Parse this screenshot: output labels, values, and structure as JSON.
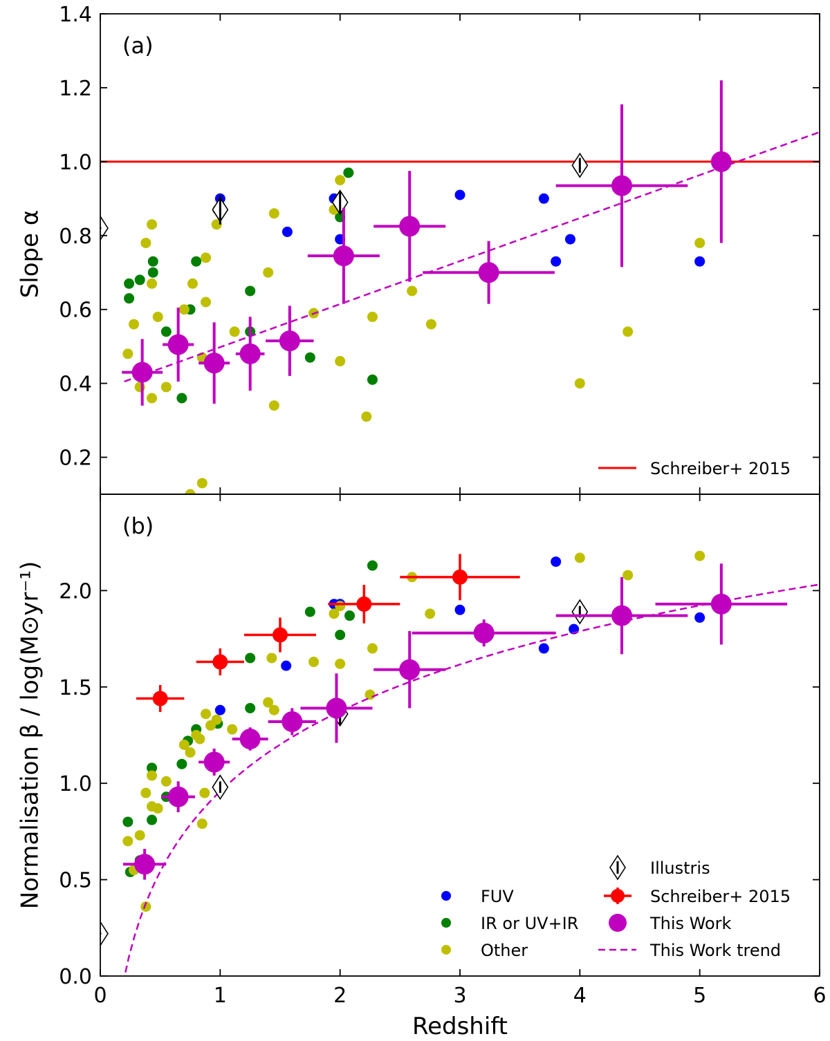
{
  "chart_data": [
    {
      "type": "scatter",
      "panel_label": "(a)",
      "ylabel": "Slope α",
      "xlabel": "",
      "xlim": [
        0,
        6
      ],
      "ylim": [
        0.1,
        1.4
      ],
      "yticks": [
        0.2,
        0.4,
        0.6,
        0.8,
        1.0,
        1.2,
        1.4
      ],
      "ytick_labels": [
        "0.2",
        "0.4",
        "0.6",
        "0.8",
        "1.0",
        "1.2",
        "1.4"
      ],
      "legend": {
        "position": "lower-right",
        "entries": [
          "Schreiber+ 2015"
        ]
      },
      "series": [
        {
          "name": "FUV",
          "color": "#0000ff",
          "points": [
            [
              1.0,
              0.9
            ],
            [
              1.56,
              0.81
            ],
            [
              1.95,
              0.9
            ],
            [
              2.0,
              0.79
            ],
            [
              3.0,
              0.91
            ],
            [
              3.7,
              0.9
            ],
            [
              3.8,
              0.73
            ],
            [
              3.92,
              0.79
            ],
            [
              5.0,
              0.73
            ]
          ]
        },
        {
          "name": "IR or UV+IR",
          "color": "#007f00",
          "points": [
            [
              0.24,
              0.67
            ],
            [
              0.24,
              0.63
            ],
            [
              0.33,
              0.68
            ],
            [
              0.44,
              0.7
            ],
            [
              0.44,
              0.73
            ],
            [
              0.55,
              0.54
            ],
            [
              0.68,
              0.36
            ],
            [
              0.75,
              0.6
            ],
            [
              0.8,
              0.73
            ],
            [
              0.98,
              0.87
            ],
            [
              1.25,
              0.65
            ],
            [
              1.25,
              0.54
            ],
            [
              1.75,
              0.47
            ],
            [
              2.0,
              0.85
            ],
            [
              2.07,
              0.97
            ],
            [
              2.27,
              0.41
            ]
          ]
        },
        {
          "name": "Other",
          "color": "#bfbf00",
          "points": [
            [
              0.23,
              0.48
            ],
            [
              0.28,
              0.56
            ],
            [
              0.33,
              0.39
            ],
            [
              0.38,
              0.78
            ],
            [
              0.43,
              0.83
            ],
            [
              0.43,
              0.67
            ],
            [
              0.43,
              0.36
            ],
            [
              0.48,
              0.58
            ],
            [
              0.55,
              0.39
            ],
            [
              0.7,
              0.6
            ],
            [
              0.77,
              0.67
            ],
            [
              0.88,
              0.74
            ],
            [
              0.88,
              0.62
            ],
            [
              0.85,
              0.47
            ],
            [
              0.85,
              0.13
            ],
            [
              0.75,
              0.1
            ],
            [
              0.97,
              0.83
            ],
            [
              1.12,
              0.54
            ],
            [
              1.4,
              0.7
            ],
            [
              1.45,
              0.86
            ],
            [
              1.45,
              0.34
            ],
            [
              1.78,
              0.59
            ],
            [
              1.95,
              0.87
            ],
            [
              2.0,
              0.95
            ],
            [
              2.0,
              0.46
            ],
            [
              2.22,
              0.31
            ],
            [
              2.27,
              0.58
            ],
            [
              2.6,
              0.65
            ],
            [
              2.76,
              0.56
            ],
            [
              4.0,
              0.4
            ],
            [
              4.4,
              0.54
            ],
            [
              5.0,
              0.78
            ]
          ]
        },
        {
          "name": "Illustris",
          "points": [
            [
              0.0,
              0.82,
              0.0
            ],
            [
              1.0,
              0.87,
              0.04
            ],
            [
              2.0,
              0.89,
              0.03
            ],
            [
              4.0,
              0.99,
              0.02
            ]
          ]
        },
        {
          "name": "This Work",
          "color": "#bf00bf",
          "points": [
            [
              0.35,
              0.43,
              0.17,
              0.09
            ],
            [
              0.65,
              0.505,
              0.13,
              0.1
            ],
            [
              0.95,
              0.455,
              0.13,
              0.11
            ],
            [
              1.25,
              0.48,
              0.12,
              0.1
            ],
            [
              1.58,
              0.515,
              0.2,
              0.095
            ],
            [
              2.03,
              0.745,
              0.3,
              0.13
            ],
            [
              2.58,
              0.825,
              0.3,
              0.15
            ],
            [
              3.24,
              0.7,
              0.55,
              0.085
            ],
            [
              4.35,
              0.935,
              0.55,
              0.22
            ],
            [
              5.18,
              1.0,
              0.0,
              0.22
            ]
          ]
        }
      ],
      "trend": {
        "name": "This Work trend",
        "x": [
          0.2,
          6.0
        ],
        "y": [
          0.405,
          1.08
        ]
      },
      "reference_line": {
        "name": "Schreiber+ 2015",
        "color": "#ff0000",
        "y": 1.0
      }
    },
    {
      "type": "scatter",
      "panel_label": "(b)",
      "ylabel": "Normalisation β / log(M⊙yr⁻¹)",
      "xlabel": "Redshift",
      "xlim": [
        0,
        6
      ],
      "ylim": [
        0.0,
        2.5
      ],
      "xticks": [
        0,
        1,
        2,
        3,
        4,
        5,
        6
      ],
      "xtick_labels": [
        "0",
        "1",
        "2",
        "3",
        "4",
        "5",
        "6"
      ],
      "yticks": [
        0.0,
        0.5,
        1.0,
        1.5,
        2.0
      ],
      "ytick_labels": [
        "0.0",
        "0.5",
        "1.0",
        "1.5",
        "2.0"
      ],
      "legend": {
        "position": "lower-right",
        "entries": [
          "FUV",
          "IR or UV+IR",
          "Other",
          "Illustris",
          "Schreiber+ 2015",
          "This Work",
          "This Work trend"
        ]
      },
      "series": [
        {
          "name": "FUV",
          "color": "#0000ff",
          "points": [
            [
              1.0,
              1.38
            ],
            [
              1.55,
              1.61
            ],
            [
              1.95,
              1.93
            ],
            [
              2.0,
              1.93
            ],
            [
              3.0,
              1.9
            ],
            [
              3.7,
              1.7
            ],
            [
              3.8,
              2.15
            ],
            [
              3.95,
              1.8
            ],
            [
              5.0,
              1.86
            ]
          ]
        },
        {
          "name": "IR or UV+IR",
          "color": "#007f00",
          "points": [
            [
              0.23,
              0.8
            ],
            [
              0.25,
              0.54
            ],
            [
              0.33,
              0.6
            ],
            [
              0.43,
              0.81
            ],
            [
              0.43,
              1.08
            ],
            [
              0.55,
              0.93
            ],
            [
              0.68,
              1.1
            ],
            [
              0.73,
              1.22
            ],
            [
              0.8,
              1.28
            ],
            [
              0.98,
              1.31
            ],
            [
              1.25,
              1.65
            ],
            [
              1.25,
              1.39
            ],
            [
              1.75,
              1.89
            ],
            [
              2.0,
              1.77
            ],
            [
              2.08,
              1.87
            ],
            [
              2.27,
              2.13
            ]
          ]
        },
        {
          "name": "Other",
          "color": "#bfbf00",
          "points": [
            [
              0.23,
              0.7
            ],
            [
              0.28,
              0.55
            ],
            [
              0.33,
              0.73
            ],
            [
              0.38,
              0.36
            ],
            [
              0.38,
              0.95
            ],
            [
              0.43,
              1.04
            ],
            [
              0.43,
              0.88
            ],
            [
              0.48,
              0.87
            ],
            [
              0.55,
              1.01
            ],
            [
              0.7,
              1.2
            ],
            [
              0.75,
              1.16
            ],
            [
              0.8,
              1.25
            ],
            [
              0.83,
              1.23
            ],
            [
              0.85,
              0.79
            ],
            [
              0.87,
              0.95
            ],
            [
              0.88,
              1.36
            ],
            [
              0.92,
              1.3
            ],
            [
              0.97,
              1.33
            ],
            [
              1.1,
              1.28
            ],
            [
              1.4,
              1.42
            ],
            [
              1.43,
              1.65
            ],
            [
              1.45,
              1.38
            ],
            [
              1.78,
              1.63
            ],
            [
              1.95,
              1.88
            ],
            [
              2.0,
              1.92
            ],
            [
              2.0,
              1.62
            ],
            [
              2.25,
              1.46
            ],
            [
              2.27,
              1.7
            ],
            [
              2.6,
              2.07
            ],
            [
              2.75,
              1.88
            ],
            [
              4.0,
              2.17
            ],
            [
              4.4,
              2.08
            ],
            [
              5.0,
              2.18
            ]
          ]
        },
        {
          "name": "Illustris",
          "points": [
            [
              0.0,
              0.22,
              0.0
            ],
            [
              1.0,
              0.98,
              0.03
            ],
            [
              2.0,
              1.36,
              0.06
            ],
            [
              4.0,
              1.89,
              0.03
            ]
          ]
        },
        {
          "name": "Schreiber+ 2015",
          "color": "#ff0000",
          "points": [
            [
              0.5,
              1.44,
              0.2,
              0.07
            ],
            [
              1.0,
              1.63,
              0.2,
              0.07
            ],
            [
              1.5,
              1.77,
              0.3,
              0.09
            ],
            [
              2.2,
              1.93,
              0.3,
              0.1
            ],
            [
              3.0,
              2.07,
              0.5,
              0.12
            ]
          ]
        },
        {
          "name": "This Work",
          "color": "#bf00bf",
          "points": [
            [
              0.37,
              0.58,
              0.18,
              0.08
            ],
            [
              0.65,
              0.93,
              0.14,
              0.08
            ],
            [
              0.95,
              1.11,
              0.13,
              0.07
            ],
            [
              1.25,
              1.23,
              0.15,
              0.06
            ],
            [
              1.6,
              1.32,
              0.2,
              0.07
            ],
            [
              1.97,
              1.39,
              0.3,
              0.18
            ],
            [
              2.58,
              1.59,
              0.3,
              0.2
            ],
            [
              3.2,
              1.78,
              0.6,
              0.07
            ],
            [
              4.35,
              1.87,
              0.55,
              0.2
            ],
            [
              5.18,
              1.93,
              0.55,
              0.21
            ]
          ]
        }
      ],
      "trend": {
        "name": "This Work trend",
        "x0": 0.19,
        "x1": 6.0,
        "a": 0.958,
        "b": 1.38
      }
    }
  ],
  "colors": {
    "this_work": "#bf00bf",
    "schreiber": "#ff0000",
    "fuv": "#0000ff",
    "ir": "#007f00",
    "other": "#bfbf00"
  }
}
